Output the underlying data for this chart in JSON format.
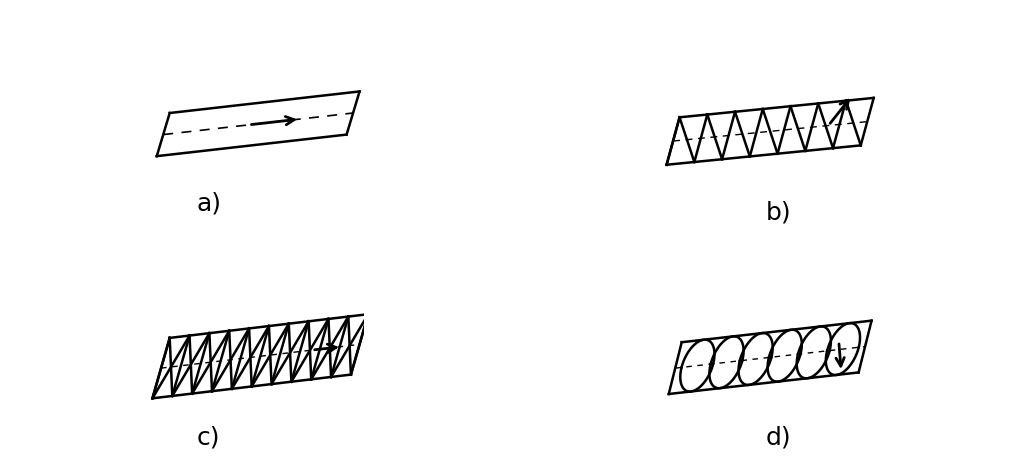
{
  "bg_color": "#ffffff",
  "line_color": "#000000",
  "label_fontsize": 18,
  "labels": [
    "a)",
    "b)",
    "c)",
    "d)"
  ],
  "lw": 1.8
}
